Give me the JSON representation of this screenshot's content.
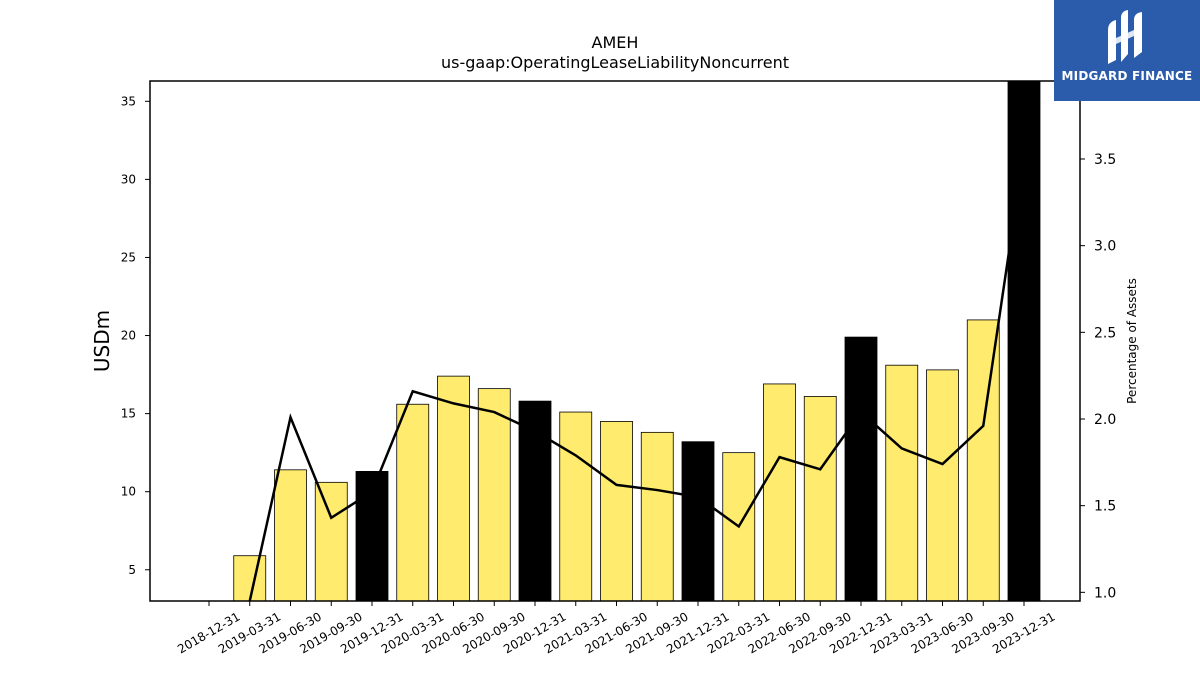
{
  "chart_data": {
    "type": "bar",
    "title": "AMEH",
    "subtitle": "us-gaap:OperatingLeaseLiabilityNoncurrent",
    "ylabel": "USDm",
    "y2label": "Percentage of Assets",
    "ylim": [
      3,
      36.3
    ],
    "y2lim": [
      0.95,
      3.95
    ],
    "yticks": [
      5,
      10,
      15,
      20,
      25,
      30,
      35
    ],
    "y2ticks": [
      1.0,
      1.5,
      2.0,
      2.5,
      3.0,
      3.5
    ],
    "categories": [
      "2018-12-31",
      "2019-03-31",
      "2019-06-30",
      "2019-09-30",
      "2019-12-31",
      "2020-03-31",
      "2020-06-30",
      "2020-09-30",
      "2020-12-31",
      "2021-03-31",
      "2021-06-30",
      "2021-09-30",
      "2021-12-31",
      "2022-03-31",
      "2022-06-30",
      "2022-09-30",
      "2022-12-31",
      "2023-03-31",
      "2023-06-30",
      "2023-09-30",
      "2023-12-31"
    ],
    "series": [
      {
        "type": "bar",
        "axis": "left",
        "values": [
          null,
          5.9,
          11.4,
          10.6,
          11.3,
          15.6,
          17.4,
          16.6,
          15.8,
          15.1,
          14.5,
          13.8,
          13.2,
          12.5,
          16.9,
          16.1,
          19.9,
          18.1,
          17.8,
          21.0,
          36.3
        ],
        "colors": [
          "#ffec6e",
          "#ffec6e",
          "#ffec6e",
          "#ffec6e",
          "#000000",
          "#ffec6e",
          "#ffec6e",
          "#ffec6e",
          "#000000",
          "#ffec6e",
          "#ffec6e",
          "#ffec6e",
          "#000000",
          "#ffec6e",
          "#ffec6e",
          "#ffec6e",
          "#000000",
          "#ffec6e",
          "#ffec6e",
          "#ffec6e",
          "#000000"
        ]
      },
      {
        "type": "line",
        "axis": "right",
        "color": "#000000",
        "values": [
          null,
          0.95,
          2.01,
          1.43,
          1.58,
          2.16,
          2.09,
          2.04,
          1.93,
          1.79,
          1.62,
          1.59,
          1.55,
          1.38,
          1.78,
          1.71,
          2.04,
          1.83,
          1.74,
          1.96,
          3.55
        ]
      }
    ],
    "grid": false,
    "legend": "none"
  },
  "logo": {
    "text": "MIDGARD FINANCE",
    "color": "#2b5cab"
  }
}
